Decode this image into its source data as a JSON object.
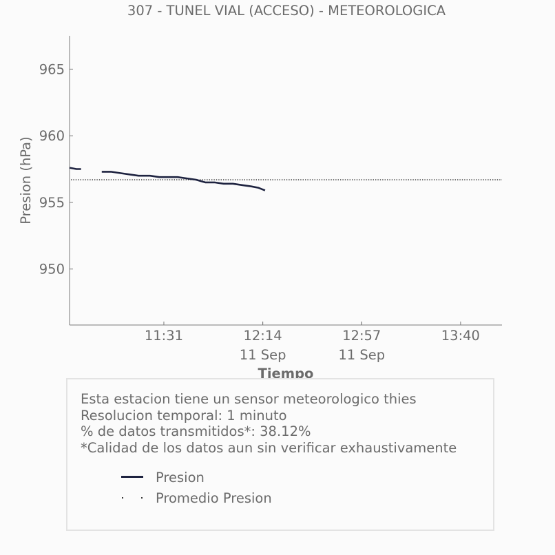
{
  "chart_data": {
    "type": "line",
    "title": "307 - TUNEL VIAL (ACCESO) - METEOROLOGICA",
    "xlabel": "Tiempo",
    "ylabel": "Presion (hPa)",
    "ylim": [
      945.8,
      967.5
    ],
    "xlim": [
      "10:50",
      "13:58"
    ],
    "x_ticks": [
      "11:31",
      "12:14",
      "12:57",
      "13:40"
    ],
    "x_date_labels": [
      {
        "x": "12:14",
        "label": "11 Sep"
      },
      {
        "x": "12:57",
        "label": "11 Sep"
      }
    ],
    "y_ticks": [
      950,
      955,
      960,
      965
    ],
    "grid": false,
    "series": [
      {
        "name": "Presion",
        "color": "#1e2340",
        "style": "solid",
        "segments": [
          [
            [
              "10:50",
              957.6
            ],
            [
              "10:53",
              957.5
            ],
            [
              "10:55",
              957.5
            ]
          ],
          [
            [
              "11:04",
              957.3
            ],
            [
              "11:08",
              957.3
            ],
            [
              "11:12",
              957.2
            ],
            [
              "11:16",
              957.1
            ],
            [
              "11:20",
              957.0
            ],
            [
              "11:25",
              957.0
            ],
            [
              "11:29",
              956.9
            ],
            [
              "11:33",
              956.9
            ],
            [
              "11:37",
              956.9
            ],
            [
              "11:41",
              956.8
            ],
            [
              "11:45",
              956.7
            ],
            [
              "11:49",
              956.5
            ],
            [
              "11:53",
              956.5
            ],
            [
              "11:57",
              956.4
            ],
            [
              "12:01",
              956.4
            ],
            [
              "12:05",
              956.3
            ],
            [
              "12:09",
              956.2
            ],
            [
              "12:12",
              956.1
            ],
            [
              "12:15",
              955.9
            ]
          ]
        ]
      },
      {
        "name": "Promedio Presion",
        "color": "#2a2a2a",
        "style": "dotted",
        "value": 956.7
      }
    ]
  },
  "info": {
    "lines": [
      "Esta estacion tiene un sensor meteorologico thies",
      "Resolucion temporal: 1 minuto",
      "% de datos transmitidos*: 38.12%",
      "*Calidad de los datos aun sin verificar exhaustivamente"
    ]
  },
  "legend": [
    {
      "label": "Presion"
    },
    {
      "label": "Promedio Presion"
    }
  ]
}
